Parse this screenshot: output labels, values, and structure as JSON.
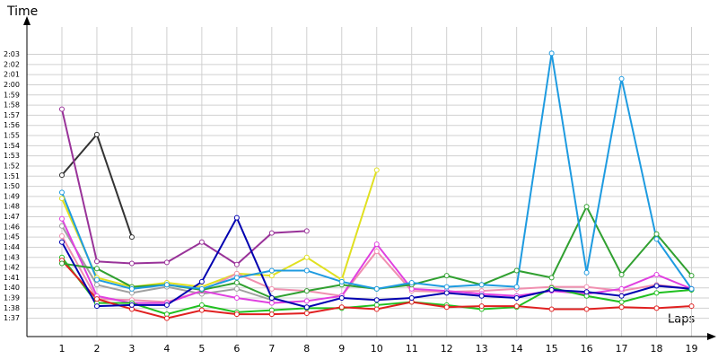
{
  "chart_data": {
    "type": "line",
    "ylabel": "Time",
    "xlabel": "Laps",
    "x": [
      1,
      2,
      3,
      4,
      5,
      6,
      7,
      8,
      9,
      10,
      11,
      12,
      13,
      14,
      15,
      16,
      17,
      18,
      19
    ],
    "xlim": [
      0,
      19.5
    ],
    "xticks": [
      1,
      2,
      3,
      4,
      5,
      6,
      7,
      8,
      9,
      10,
      11,
      12,
      13,
      14,
      15,
      16,
      17,
      18,
      19
    ],
    "ylim": [
      95.2,
      125.7
    ],
    "yticks": [
      {
        "value": 97,
        "label": "1:37"
      },
      {
        "value": 98,
        "label": "1:38"
      },
      {
        "value": 99,
        "label": "1:39"
      },
      {
        "value": 100,
        "label": "1:40"
      },
      {
        "value": 101,
        "label": "1:41"
      },
      {
        "value": 102,
        "label": "1:42"
      },
      {
        "value": 103,
        "label": "1:43"
      },
      {
        "value": 104,
        "label": "1:44"
      },
      {
        "value": 105,
        "label": "1:45"
      },
      {
        "value": 106,
        "label": "1:46"
      },
      {
        "value": 107,
        "label": "1:47"
      },
      {
        "value": 108,
        "label": "1:48"
      },
      {
        "value": 109,
        "label": "1:49"
      },
      {
        "value": 110,
        "label": "1:50"
      },
      {
        "value": 111,
        "label": "1:51"
      },
      {
        "value": 112,
        "label": "1:52"
      },
      {
        "value": 113,
        "label": "1:53"
      },
      {
        "value": 114,
        "label": "1:54"
      },
      {
        "value": 115,
        "label": "1:55"
      },
      {
        "value": 116,
        "label": "1:56"
      },
      {
        "value": 117,
        "label": "1:57"
      },
      {
        "value": 118,
        "label": "1:58"
      },
      {
        "value": 119,
        "label": "1:59"
      },
      {
        "value": 120,
        "label": "2:00"
      },
      {
        "value": 121,
        "label": "2:01"
      },
      {
        "value": 122,
        "label": "2:02"
      },
      {
        "value": 123,
        "label": "2:03"
      }
    ],
    "grid": true,
    "series": [
      {
        "color": "#a0a0a0",
        "values": [
          106.1,
          100.3,
          99.5,
          100.1,
          99.4,
          99.9,
          98.8,
          null,
          null,
          null,
          null,
          null,
          null,
          null,
          null,
          null,
          null,
          null,
          null
        ]
      },
      {
        "color": "#333333",
        "values": [
          111.1,
          115.1,
          105.0,
          null,
          null,
          null,
          null,
          null,
          null,
          null,
          null,
          null,
          null,
          null,
          null,
          null,
          null,
          null,
          null
        ]
      },
      {
        "color": "#993399",
        "values": [
          117.6,
          102.6,
          102.4,
          102.5,
          104.5,
          102.3,
          105.4,
          105.6,
          null,
          null,
          null,
          null,
          null,
          null,
          null,
          null,
          null,
          null,
          null
        ]
      },
      {
        "color": "#e0e020",
        "values": [
          108.8,
          101.0,
          100.1,
          100.5,
          100.1,
          101.4,
          101.2,
          103.0,
          100.8,
          111.6,
          null,
          null,
          null,
          null,
          null,
          null,
          null,
          null,
          null
        ]
      },
      {
        "color": "#f090b0",
        "values": [
          105.1,
          98.9,
          98.8,
          98.6,
          99.7,
          101.4,
          99.9,
          99.7,
          99.2,
          103.6,
          99.7,
          99.6,
          99.7,
          99.9,
          100.1,
          100.1,
          99.7,
          100.3,
          99.9
        ]
      },
      {
        "color": "#e040e0",
        "values": [
          106.8,
          99.2,
          98.5,
          98.5,
          99.7,
          99.0,
          98.5,
          98.7,
          99.2,
          104.3,
          99.9,
          99.7,
          99.4,
          99.2,
          99.7,
          99.4,
          99.9,
          101.3,
          99.9
        ]
      },
      {
        "color": "#20c020",
        "values": [
          103.0,
          98.5,
          98.5,
          97.4,
          98.3,
          97.6,
          97.8,
          98.0,
          98.0,
          98.3,
          98.6,
          98.3,
          97.9,
          98.1,
          100.0,
          99.2,
          98.6,
          99.5,
          99.8
        ]
      },
      {
        "color": "#e02020",
        "values": [
          102.7,
          98.9,
          97.9,
          97.0,
          97.8,
          97.4,
          97.4,
          97.5,
          98.1,
          97.9,
          98.6,
          98.1,
          98.2,
          98.2,
          97.9,
          97.9,
          98.1,
          98.0,
          98.2
        ]
      },
      {
        "color": "#30a030",
        "values": [
          102.4,
          101.9,
          100.1,
          100.3,
          99.8,
          100.5,
          99.0,
          99.7,
          100.3,
          99.9,
          100.3,
          101.2,
          100.3,
          101.7,
          101.0,
          108.0,
          101.3,
          105.3,
          101.2
        ]
      },
      {
        "color": "#0000b0",
        "values": [
          104.5,
          98.2,
          98.3,
          98.3,
          100.6,
          106.9,
          99.0,
          98.1,
          99.0,
          98.8,
          99.0,
          99.5,
          99.2,
          99.0,
          99.8,
          99.6,
          99.2,
          100.2,
          99.9
        ]
      },
      {
        "color": "#1e9be0",
        "values": [
          109.4,
          100.8,
          99.9,
          100.3,
          99.9,
          101.0,
          101.7,
          101.7,
          100.6,
          99.9,
          100.5,
          100.1,
          100.3,
          100.1,
          123.1,
          101.5,
          120.6,
          104.8,
          99.9
        ]
      }
    ]
  }
}
